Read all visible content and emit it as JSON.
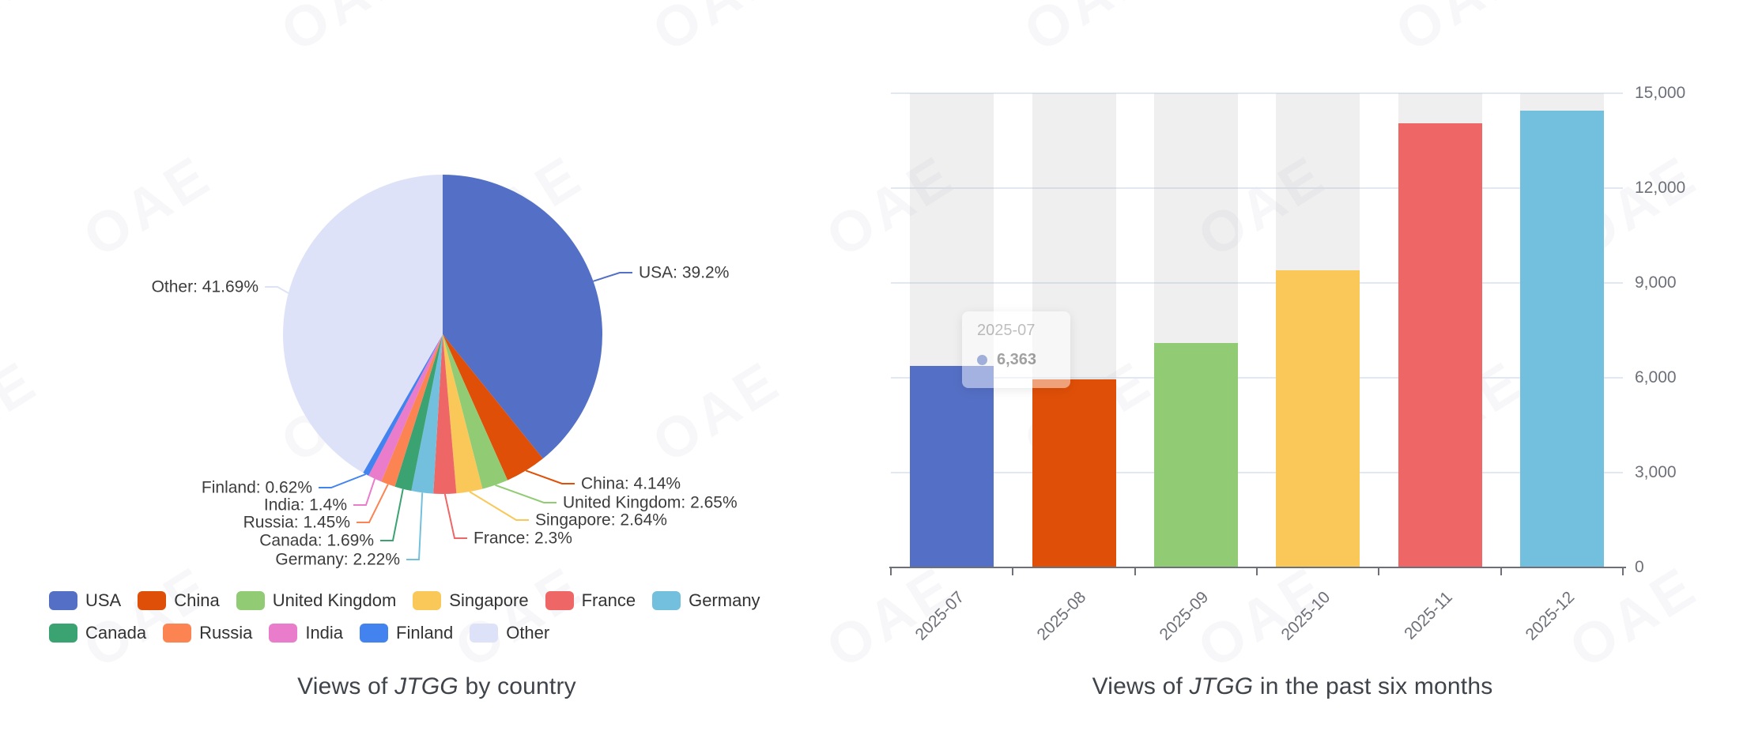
{
  "watermark": {
    "text": "OAE"
  },
  "pie": {
    "title": {
      "prefix": "Views of ",
      "italic": "JTGG",
      "suffix": " by country"
    }
  },
  "bar": {
    "title": {
      "prefix": "Views of ",
      "italic": "JTGG",
      "suffix": " in the past six months"
    },
    "tooltip": {
      "label": "2025-07",
      "value": "6,363"
    }
  },
  "chart_data": [
    {
      "type": "pie",
      "title": "Views of JTGG by country",
      "unit": "%",
      "label_format": "{name}: {value}%",
      "legend_position": "bottom",
      "series": [
        {
          "name": "USA",
          "value": 39.2,
          "color": "#5470c6"
        },
        {
          "name": "China",
          "value": 4.14,
          "color": "#e04f08"
        },
        {
          "name": "United Kingdom",
          "value": 2.65,
          "color": "#91cc75"
        },
        {
          "name": "Singapore",
          "value": 2.64,
          "color": "#fac858"
        },
        {
          "name": "France",
          "value": 2.3,
          "color": "#ee6666"
        },
        {
          "name": "Germany",
          "value": 2.22,
          "color": "#73c0de"
        },
        {
          "name": "Canada",
          "value": 1.69,
          "color": "#3ba272"
        },
        {
          "name": "Russia",
          "value": 1.45,
          "color": "#fc8452"
        },
        {
          "name": "India",
          "value": 1.4,
          "color": "#ea7ccc"
        },
        {
          "name": "Finland",
          "value": 0.62,
          "color": "#4283f0"
        },
        {
          "name": "Other",
          "value": 41.69,
          "color": "#dde2f8"
        }
      ]
    },
    {
      "type": "bar",
      "title": "Views of JTGG in the past six months",
      "categories": [
        "2025-07",
        "2025-08",
        "2025-09",
        "2025-10",
        "2025-11",
        "2025-12"
      ],
      "values": [
        6363,
        5950,
        7100,
        9400,
        14050,
        14450
      ],
      "bar_colors": [
        "#5470c6",
        "#e04f08",
        "#91cc75",
        "#fac858",
        "#ee6666",
        "#73c0de"
      ],
      "ylim": [
        0,
        15000
      ],
      "ytick_interval": 3000,
      "ytick_labels": [
        "0",
        "3,000",
        "6,000",
        "9,000",
        "12,000",
        "15,000"
      ],
      "grid": true,
      "background_bars": true,
      "tooltip": {
        "category": "2025-07",
        "value": 6363,
        "value_text": "6,363"
      }
    }
  ]
}
